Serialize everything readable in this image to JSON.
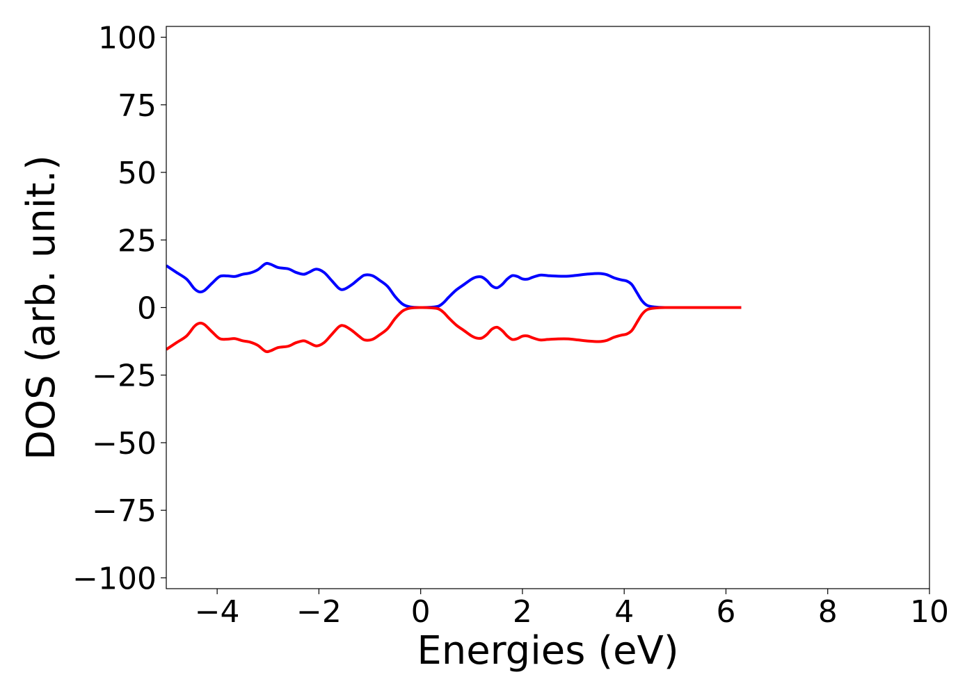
{
  "chart_data": {
    "type": "line",
    "title": "",
    "xlabel": "Energies (eV)",
    "ylabel": "DOS (arb. unit.)",
    "xlim": [
      -5,
      10
    ],
    "ylim": [
      -104,
      104
    ],
    "xticks": [
      -4,
      -2,
      0,
      2,
      4,
      6,
      8,
      10
    ],
    "yticks": [
      -100,
      -75,
      -50,
      -25,
      0,
      25,
      50,
      75,
      100
    ],
    "xtick_labels": [
      "−4",
      "−2",
      "0",
      "2",
      "4",
      "6",
      "8",
      "10"
    ],
    "ytick_labels": [
      "−100",
      "−75",
      "−50",
      "−25",
      "0",
      "25",
      "50",
      "75",
      "100"
    ],
    "grid": false,
    "legend": "none",
    "series": [
      {
        "color": "#0000ff",
        "x": [
          -5.0,
          -4.8,
          -4.6,
          -4.45,
          -4.35,
          -4.25,
          -4.1,
          -3.95,
          -3.8,
          -3.65,
          -3.5,
          -3.35,
          -3.2,
          -3.05,
          -2.95,
          -2.8,
          -2.6,
          -2.45,
          -2.3,
          -2.2,
          -2.05,
          -1.9,
          -1.75,
          -1.6,
          -1.5,
          -1.35,
          -1.2,
          -1.1,
          -0.95,
          -0.8,
          -0.65,
          -0.5,
          -0.35,
          -0.2,
          0.0,
          0.2,
          0.35,
          0.45,
          0.55,
          0.7,
          0.85,
          1.0,
          1.1,
          1.2,
          1.3,
          1.4,
          1.5,
          1.6,
          1.7,
          1.8,
          1.9,
          2.0,
          2.1,
          2.2,
          2.35,
          2.5,
          2.7,
          2.9,
          3.1,
          3.3,
          3.5,
          3.65,
          3.8,
          3.95,
          4.05,
          4.15,
          4.25,
          4.35,
          4.45,
          4.6,
          4.8,
          5.2,
          5.6,
          6.0,
          6.3
        ],
        "y": [
          15.5,
          13.0,
          10.5,
          7.0,
          5.8,
          6.3,
          9.0,
          11.5,
          11.7,
          11.5,
          12.3,
          12.8,
          14.0,
          16.2,
          16.0,
          14.8,
          14.3,
          13.0,
          12.3,
          13.0,
          14.2,
          13.0,
          10.0,
          7.0,
          6.8,
          8.5,
          10.8,
          12.0,
          11.8,
          10.0,
          7.8,
          4.0,
          1.2,
          0.2,
          0.0,
          0.1,
          0.5,
          1.8,
          3.8,
          6.5,
          8.5,
          10.5,
          11.3,
          11.3,
          10.0,
          8.0,
          7.3,
          8.5,
          10.5,
          11.8,
          11.5,
          10.6,
          10.5,
          11.2,
          12.0,
          11.8,
          11.6,
          11.6,
          12.0,
          12.4,
          12.6,
          12.2,
          11.0,
          10.2,
          9.8,
          8.5,
          5.5,
          2.5,
          0.8,
          0.2,
          0.0,
          0.0,
          0.0,
          0.0,
          0.0
        ]
      },
      {
        "color": "#ff0000",
        "x": [
          -5.0,
          -4.8,
          -4.6,
          -4.45,
          -4.35,
          -4.25,
          -4.1,
          -3.95,
          -3.8,
          -3.65,
          -3.5,
          -3.35,
          -3.2,
          -3.05,
          -2.95,
          -2.8,
          -2.6,
          -2.45,
          -2.3,
          -2.2,
          -2.05,
          -1.9,
          -1.75,
          -1.6,
          -1.5,
          -1.35,
          -1.2,
          -1.1,
          -0.95,
          -0.8,
          -0.65,
          -0.5,
          -0.35,
          -0.2,
          0.0,
          0.2,
          0.35,
          0.45,
          0.55,
          0.7,
          0.85,
          1.0,
          1.1,
          1.2,
          1.3,
          1.4,
          1.5,
          1.6,
          1.7,
          1.8,
          1.9,
          2.0,
          2.1,
          2.2,
          2.35,
          2.5,
          2.7,
          2.9,
          3.1,
          3.3,
          3.5,
          3.65,
          3.8,
          3.95,
          4.05,
          4.15,
          4.25,
          4.35,
          4.45,
          4.6,
          4.8,
          5.2,
          5.6,
          6.0,
          6.3
        ],
        "y": [
          -15.5,
          -13.0,
          -10.5,
          -7.0,
          -5.8,
          -6.3,
          -9.0,
          -11.5,
          -11.7,
          -11.5,
          -12.3,
          -12.8,
          -14.0,
          -16.2,
          -16.0,
          -14.8,
          -14.3,
          -13.0,
          -12.3,
          -13.0,
          -14.2,
          -13.0,
          -10.0,
          -7.0,
          -6.8,
          -8.5,
          -10.8,
          -12.0,
          -11.8,
          -10.0,
          -7.8,
          -4.0,
          -1.2,
          -0.2,
          0.0,
          -0.1,
          -0.5,
          -1.8,
          -3.8,
          -6.5,
          -8.5,
          -10.5,
          -11.3,
          -11.3,
          -10.0,
          -8.0,
          -7.3,
          -8.5,
          -10.5,
          -11.8,
          -11.5,
          -10.6,
          -10.5,
          -11.2,
          -12.0,
          -11.8,
          -11.6,
          -11.6,
          -12.0,
          -12.4,
          -12.6,
          -12.2,
          -11.0,
          -10.2,
          -9.8,
          -8.5,
          -5.5,
          -2.5,
          -0.8,
          -0.2,
          0.0,
          0.0,
          0.0,
          0.0,
          0.0
        ]
      }
    ]
  }
}
